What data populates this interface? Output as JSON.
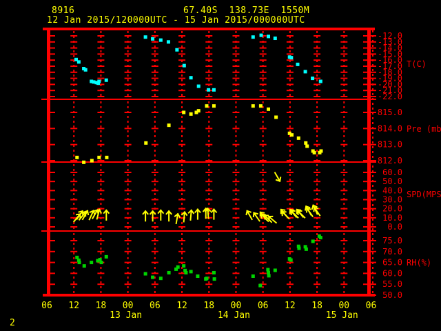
{
  "header": {
    "station_id": "8916",
    "location": "67.40S  138.73E  1550M",
    "time_range": "12 Jan 2015/120000UTC - 15 Jan 2015/000000UTC"
  },
  "footer": {
    "page_label": "2"
  },
  "colors": {
    "background": "#000000",
    "grid": "#ff0000",
    "header_text": "#ffff00",
    "axis_text": "#ff0000",
    "temperature": "#00ffff",
    "pressure": "#ffff00",
    "wind": "#ffff00",
    "humidity": "#00d400"
  },
  "x_axis": {
    "hour_labels": [
      "06",
      "12",
      "18",
      "00",
      "06",
      "12",
      "18",
      "00",
      "06",
      "12",
      "18",
      "00",
      "06"
    ],
    "date_labels": [
      "13 Jan",
      "14 Jan",
      "15 Jan"
    ],
    "x_unit": "hours since 12 Jan 2015 06:00 UTC"
  },
  "chart_data": [
    {
      "type": "scatter",
      "name": "temperature",
      "ylabel": "T(C)",
      "color": "#00ffff",
      "yticks": [
        -12,
        -13,
        -14,
        -15,
        -16,
        -17,
        -18,
        -19,
        -20,
        -21,
        -22
      ],
      "points": [
        [
          6.5,
          -15.9
        ],
        [
          7.1,
          -16.3
        ],
        [
          8.2,
          -17.4
        ],
        [
          8.6,
          -17.6
        ],
        [
          9.9,
          -19.5
        ],
        [
          10.4,
          -19.6
        ],
        [
          11.0,
          -19.7
        ],
        [
          11.4,
          -19.8
        ],
        [
          11.6,
          -19.5
        ],
        [
          13.2,
          -19.3
        ],
        [
          21.9,
          -12.2
        ],
        [
          23.5,
          -12.5
        ],
        [
          25.3,
          -12.7
        ],
        [
          27.0,
          -13.0
        ],
        [
          28.9,
          -14.3
        ],
        [
          30.5,
          -16.9
        ],
        [
          32.0,
          -18.9
        ],
        [
          33.7,
          -20.3
        ],
        [
          35.9,
          -20.9
        ],
        [
          37.1,
          -20.9
        ],
        [
          45.8,
          -12.2
        ],
        [
          47.6,
          -11.9
        ],
        [
          49.2,
          -12.1
        ],
        [
          50.7,
          -12.4
        ],
        [
          53.9,
          -15.5
        ],
        [
          54.3,
          -15.6
        ],
        [
          55.7,
          -16.7
        ],
        [
          57.4,
          -17.9
        ],
        [
          59.0,
          -19.0
        ],
        [
          60.8,
          -19.5
        ]
      ]
    },
    {
      "type": "scatter",
      "name": "pressure",
      "ylabel": "Pre (mb)",
      "color": "#ffff00",
      "yticks": [
        815,
        814,
        813,
        812
      ],
      "points": [
        [
          6.7,
          812.2
        ],
        [
          8.2,
          811.9
        ],
        [
          10.0,
          812.0
        ],
        [
          11.6,
          812.2
        ],
        [
          13.3,
          812.2
        ],
        [
          22.0,
          813.1
        ],
        [
          27.1,
          814.2
        ],
        [
          30.4,
          815.0
        ],
        [
          32.0,
          814.9
        ],
        [
          33.2,
          815.0
        ],
        [
          33.7,
          815.1
        ],
        [
          35.5,
          815.4
        ],
        [
          37.1,
          815.4
        ],
        [
          45.8,
          815.4
        ],
        [
          47.5,
          815.4
        ],
        [
          49.2,
          815.2
        ],
        [
          50.9,
          814.7
        ],
        [
          53.9,
          813.7
        ],
        [
          54.4,
          813.6
        ],
        [
          55.9,
          813.4
        ],
        [
          57.5,
          813.1
        ],
        [
          57.8,
          812.9
        ],
        [
          59.1,
          812.6
        ],
        [
          59.4,
          812.5
        ],
        [
          60.6,
          812.5
        ],
        [
          60.9,
          812.6
        ]
      ]
    },
    {
      "type": "wind",
      "name": "wind_speed",
      "ylabel": "SPD(MPS)",
      "color": "#ffff00",
      "yticks": [
        60,
        50,
        40,
        30,
        20,
        10,
        0
      ],
      "arrow_dir_note": "degrees clockwise from pointing up",
      "arrows": [
        [
          6.7,
          10,
          40
        ],
        [
          7.3,
          13,
          35
        ],
        [
          7.9,
          12,
          40
        ],
        [
          8.5,
          13,
          30
        ],
        [
          9.9,
          13,
          25
        ],
        [
          10.7,
          14,
          30
        ],
        [
          11.4,
          14,
          15
        ],
        [
          13.2,
          13,
          0
        ],
        [
          21.9,
          12,
          0
        ],
        [
          23.5,
          12,
          0
        ],
        [
          25.3,
          13,
          0
        ],
        [
          27.1,
          12,
          0
        ],
        [
          28.9,
          9,
          10
        ],
        [
          30.5,
          11,
          5
        ],
        [
          32.0,
          13,
          5
        ],
        [
          33.5,
          14,
          0
        ],
        [
          35.3,
          15,
          0
        ],
        [
          35.8,
          15,
          -5
        ],
        [
          37.1,
          14,
          0
        ],
        [
          45.0,
          13,
          -30
        ],
        [
          46.6,
          11,
          -35
        ],
        [
          48.1,
          12,
          -40
        ],
        [
          48.4,
          10,
          -45
        ],
        [
          49.1,
          9,
          -45
        ],
        [
          50.1,
          8,
          -50
        ],
        [
          51.2,
          55,
          150
        ],
        [
          52.7,
          15,
          -40
        ],
        [
          53.0,
          13,
          -45
        ],
        [
          54.7,
          15,
          -40
        ],
        [
          55.0,
          14,
          -45
        ],
        [
          56.2,
          15,
          -40
        ],
        [
          56.5,
          14,
          -45
        ],
        [
          58.1,
          18,
          -30
        ],
        [
          58.4,
          16,
          -35
        ],
        [
          59.6,
          19,
          -25
        ],
        [
          60.0,
          17,
          -35
        ]
      ]
    },
    {
      "type": "scatter",
      "name": "relative_humidity",
      "ylabel": "RH(%)",
      "color": "#00d400",
      "yticks": [
        75,
        70,
        65,
        60,
        55,
        50
      ],
      "points": [
        [
          6.7,
          67.3
        ],
        [
          7.1,
          66.0
        ],
        [
          7.2,
          65.0
        ],
        [
          8.3,
          63.4
        ],
        [
          9.9,
          65.0
        ],
        [
          11.3,
          65.8
        ],
        [
          11.8,
          66.3
        ],
        [
          12.1,
          65.0
        ],
        [
          13.2,
          67.6
        ],
        [
          21.9,
          59.8
        ],
        [
          23.5,
          58.2
        ],
        [
          25.3,
          57.7
        ],
        [
          27.1,
          60.3
        ],
        [
          28.7,
          61.9
        ],
        [
          29.1,
          62.9
        ],
        [
          30.4,
          63.4
        ],
        [
          30.7,
          61.3
        ],
        [
          30.9,
          60.3
        ],
        [
          32.0,
          60.8
        ],
        [
          33.5,
          58.7
        ],
        [
          35.3,
          57.4
        ],
        [
          35.5,
          57.7
        ],
        [
          37.1,
          60.3
        ],
        [
          37.2,
          57.4
        ],
        [
          45.8,
          58.7
        ],
        [
          47.4,
          54.4
        ],
        [
          49.1,
          61.7
        ],
        [
          49.2,
          60.3
        ],
        [
          49.3,
          58.9
        ],
        [
          50.7,
          61.4
        ],
        [
          53.9,
          66.6
        ],
        [
          54.2,
          66.1
        ],
        [
          55.9,
          72.4
        ],
        [
          56.0,
          71.5
        ],
        [
          57.4,
          72.2
        ],
        [
          57.6,
          71.1
        ],
        [
          59.1,
          74.7
        ],
        [
          60.5,
          77.1
        ],
        [
          60.8,
          76.4
        ]
      ]
    }
  ]
}
